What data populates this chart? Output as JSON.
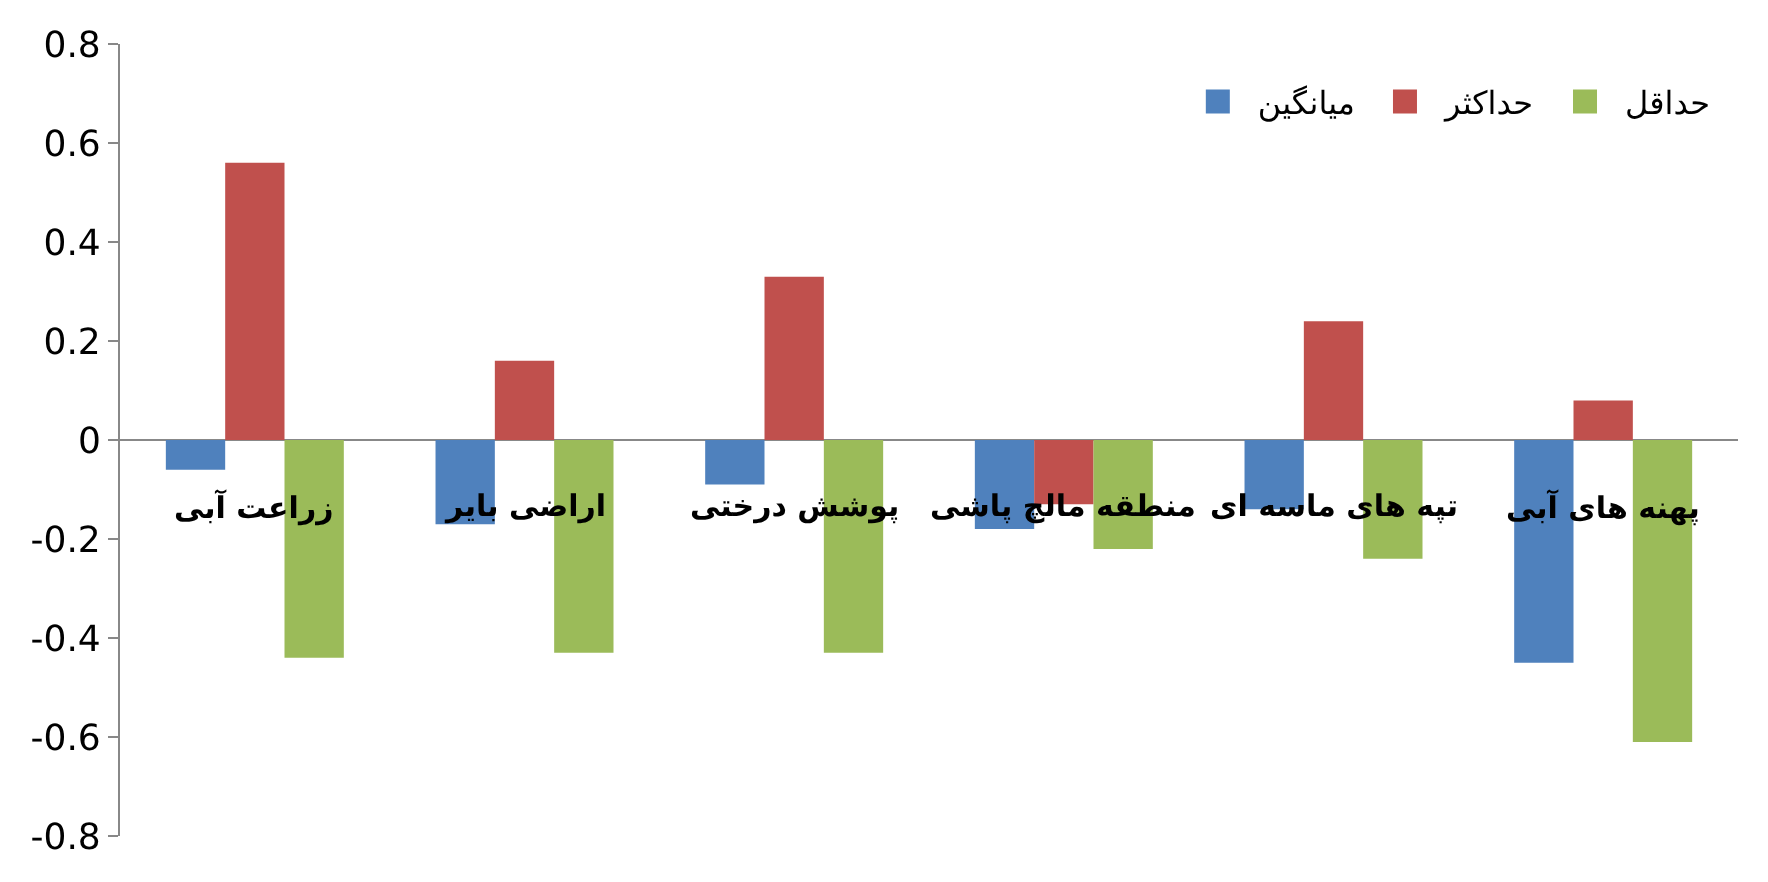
{
  "chart_data": {
    "type": "bar",
    "categories": [
      "زراعت آبی",
      "اراضی بایر",
      "پوشش درختی",
      "منطقه مالچ پاشی",
      "تپه های ماسه ای",
      "پهنه های آبی"
    ],
    "series": [
      {
        "name": "ميانگين",
        "color": "#4f81bd",
        "values": [
          -0.06,
          -0.17,
          -0.09,
          -0.18,
          -0.14,
          -0.45
        ]
      },
      {
        "name": "حداکثر",
        "color": "#c0504d",
        "values": [
          0.56,
          0.16,
          0.33,
          -0.13,
          0.24,
          0.08
        ]
      },
      {
        "name": "حداقل",
        "color": "#9bbb59",
        "values": [
          -0.44,
          -0.43,
          -0.43,
          -0.22,
          -0.24,
          -0.61
        ]
      }
    ],
    "ylim": [
      -0.8,
      0.8
    ],
    "yticks": [
      {
        "value": -0.8,
        "label": "-0.8"
      },
      {
        "value": -0.6,
        "label": "-0.6"
      },
      {
        "value": -0.4,
        "label": "-0.4"
      },
      {
        "value": -0.2,
        "label": "-0.2"
      },
      {
        "value": 0,
        "label": "0"
      },
      {
        "value": 0.2,
        "label": "0.2"
      },
      {
        "value": 0.4,
        "label": "0.4"
      },
      {
        "value": 0.6,
        "label": "0.6"
      },
      {
        "value": 0.8,
        "label": "0.8"
      }
    ],
    "legend": "top right"
  }
}
